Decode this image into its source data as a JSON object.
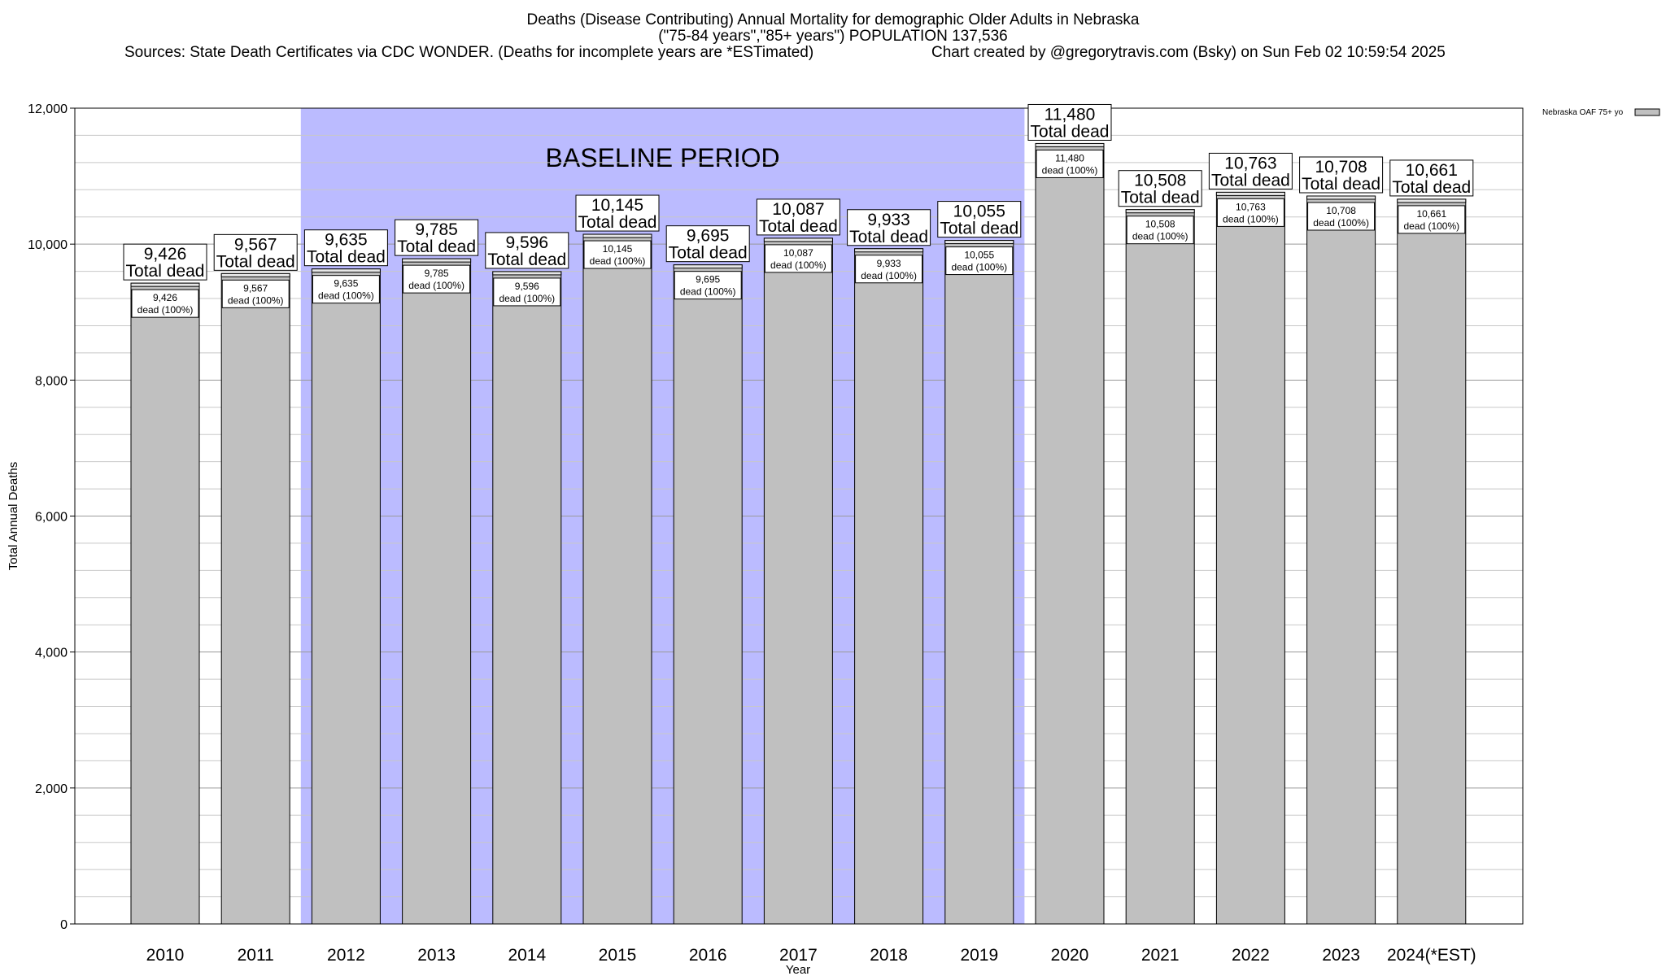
{
  "header": {
    "title_line1": "Deaths (Disease Contributing) Annual Mortality for demographic Older Adults in Nebraska",
    "title_line2": "(\"75-84 years\",\"85+ years\") POPULATION 137,536",
    "sources": "Sources: State Death Certificates via CDC WONDER. (Deaths for incomplete years are *ESTimated)",
    "credit": "Chart created by @gregorytravis.com (Bsky) on Sun Feb 02 10:59:54 2025"
  },
  "chart_data": {
    "type": "bar",
    "categories": [
      "2010",
      "2011",
      "2012",
      "2013",
      "2014",
      "2015",
      "2016",
      "2017",
      "2018",
      "2019",
      "2020",
      "2021",
      "2022",
      "2023",
      "2024(*EST)"
    ],
    "series": [
      {
        "name": "Nebraska OAF 75+ yo",
        "values": [
          9426,
          9567,
          9635,
          9785,
          9596,
          10145,
          9695,
          10087,
          9933,
          10055,
          11480,
          10508,
          10763,
          10708,
          10661
        ],
        "color": "#c0c0c0"
      }
    ],
    "top_labels": [
      [
        "9,426",
        "Total dead"
      ],
      [
        "9,567",
        "Total dead"
      ],
      [
        "9,635",
        "Total dead"
      ],
      [
        "9,785",
        "Total dead"
      ],
      [
        "9,596",
        "Total dead"
      ],
      [
        "10,145",
        "Total dead"
      ],
      [
        "9,695",
        "Total dead"
      ],
      [
        "10,087",
        "Total dead"
      ],
      [
        "9,933",
        "Total dead"
      ],
      [
        "10,055",
        "Total dead"
      ],
      [
        "11,480",
        "Total dead"
      ],
      [
        "10,508",
        "Total dead"
      ],
      [
        "10,763",
        "Total dead"
      ],
      [
        "10,708",
        "Total dead"
      ],
      [
        "10,661",
        "Total dead"
      ]
    ],
    "inner_labels": [
      [
        "9,426",
        "dead (100%)"
      ],
      [
        "9,567",
        "dead (100%)"
      ],
      [
        "9,635",
        "dead (100%)"
      ],
      [
        "9,785",
        "dead (100%)"
      ],
      [
        "9,596",
        "dead (100%)"
      ],
      [
        "10,145",
        "dead (100%)"
      ],
      [
        "9,695",
        "dead (100%)"
      ],
      [
        "10,087",
        "dead (100%)"
      ],
      [
        "9,933",
        "dead (100%)"
      ],
      [
        "10,055",
        "dead (100%)"
      ],
      [
        "11,480",
        "dead (100%)"
      ],
      [
        "10,508",
        "dead (100%)"
      ],
      [
        "10,763",
        "dead (100%)"
      ],
      [
        "10,708",
        "dead (100%)"
      ],
      [
        "10,661",
        "dead (100%)"
      ]
    ],
    "xlabel": "Year",
    "ylabel": "Total Annual Deaths",
    "ylim": [
      0,
      12000
    ],
    "yticks": [
      0,
      2000,
      4000,
      6000,
      8000,
      10000,
      12000
    ],
    "ytick_labels": [
      "0",
      "2,000",
      "4,000",
      "6,000",
      "8,000",
      "10,000",
      "12,000"
    ],
    "grid": true,
    "legend_position": "top-right",
    "baseline": {
      "label": "BASELINE PERIOD",
      "start": "2012",
      "end": "2019",
      "color": "#bbbbff"
    }
  }
}
